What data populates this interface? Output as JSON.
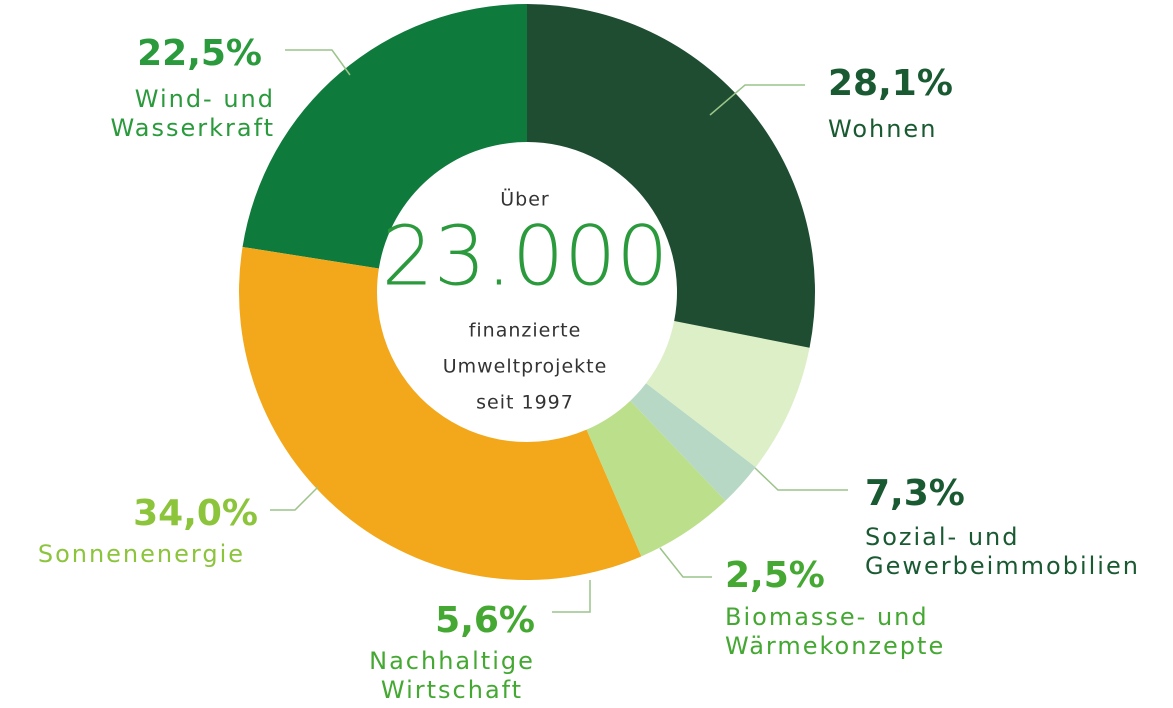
{
  "chart_data": {
    "type": "donut",
    "categories": [
      "Wohnen",
      "Sozial- und Gewerbeimmobilien",
      "Biomasse- und Wärmekonzepte",
      "Nachhaltige Wirtschaft",
      "Sonnenenergie",
      "Wind- und Wasserkraft"
    ],
    "values": [
      28.1,
      7.3,
      2.5,
      5.6,
      34.0,
      22.5
    ],
    "value_labels": [
      "28,1%",
      "7,3%",
      "2,5%",
      "5,6%",
      "34,0%",
      "22,5%"
    ],
    "colors": [
      "#1f4d32",
      "#dcefc6",
      "#b6d8c5",
      "#bcdf8c",
      "#f2a81a",
      "#0e7a3c"
    ],
    "label_colors": [
      "#1a5a32",
      "#1a5a32",
      "#44a832",
      "#44a832",
      "#8cc43c",
      "#2a9a3c"
    ],
    "center_text": [
      "Über",
      "23.000",
      "finanzierte",
      "Umweltprojekte",
      "seit 1997"
    ]
  }
}
